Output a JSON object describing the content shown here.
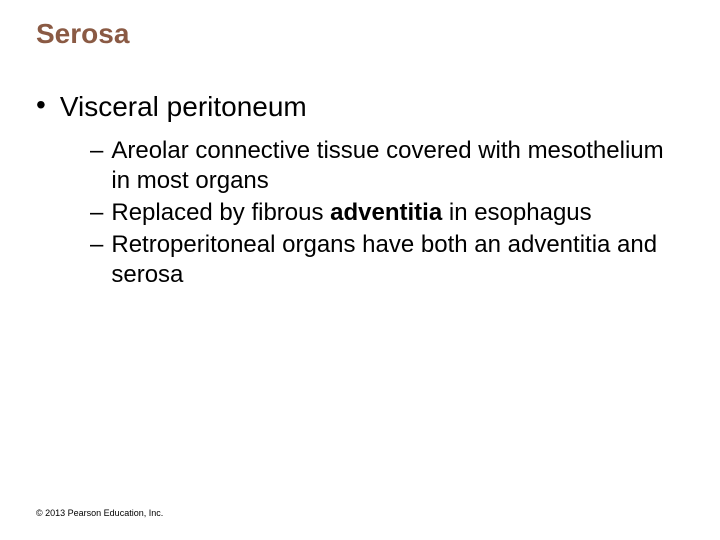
{
  "title": {
    "text": "Serosa",
    "color": "#8a5a44"
  },
  "body_color": "#000000",
  "bullets": [
    {
      "text": "Visceral peritoneum",
      "sub": [
        {
          "pre": "Areolar connective tissue covered with mesothelium in most organs",
          "bold": "",
          "post": ""
        },
        {
          "pre": "Replaced by fibrous ",
          "bold": "adventitia",
          "post": " in esophagus"
        },
        {
          "pre": "Retroperitoneal organs have both an adventitia and serosa",
          "bold": "",
          "post": ""
        }
      ]
    }
  ],
  "copyright": "© 2013 Pearson Education, Inc."
}
